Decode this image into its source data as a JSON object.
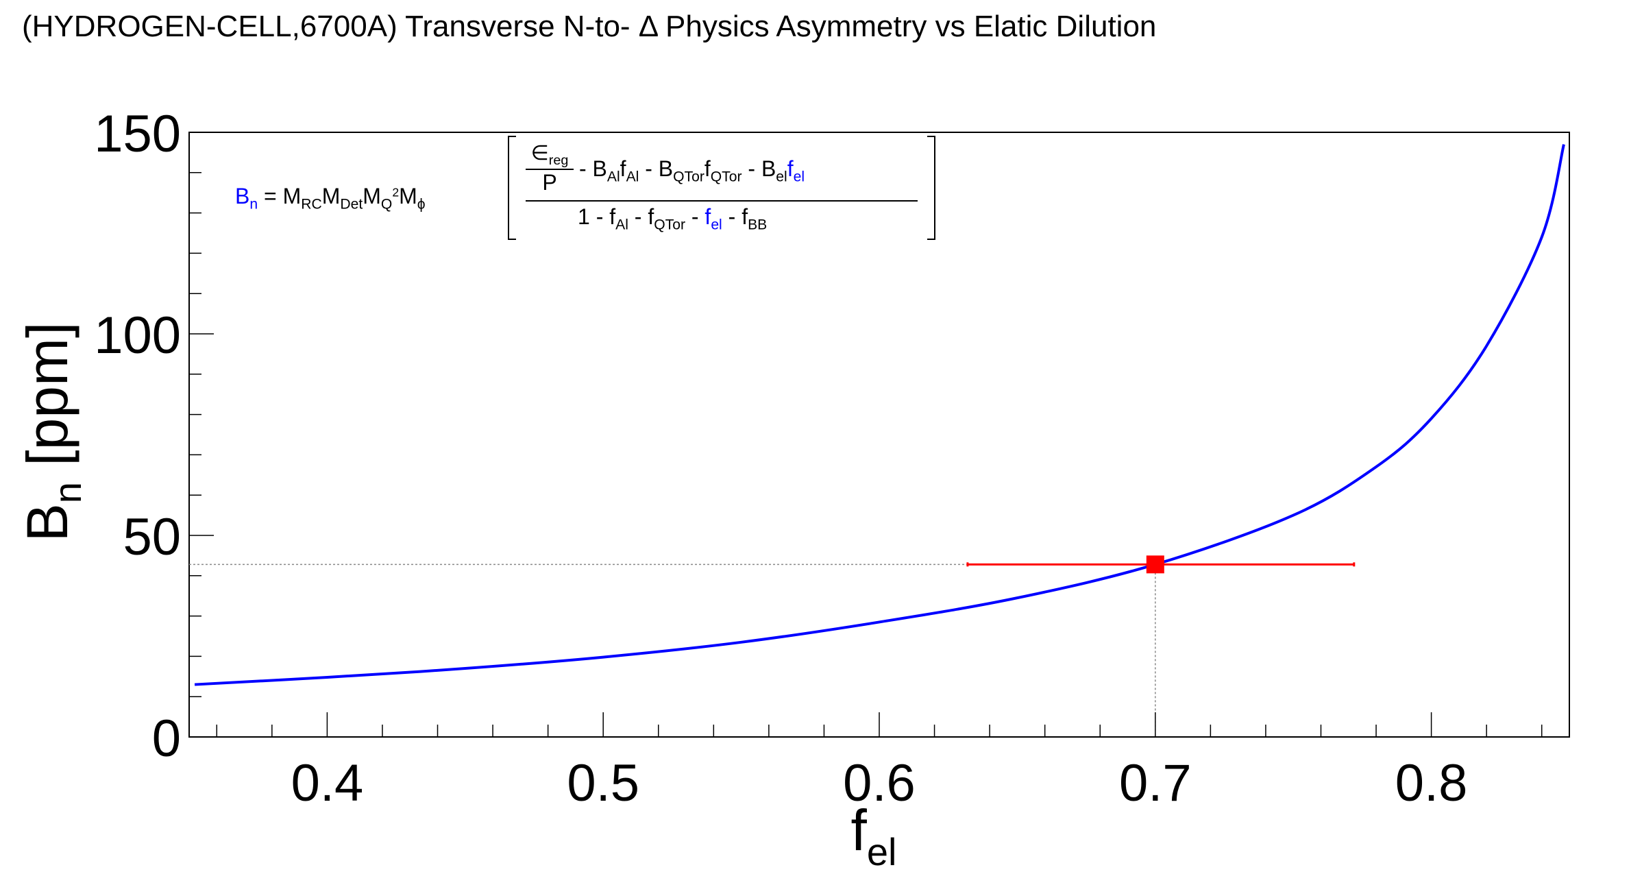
{
  "title": "(HYDROGEN-CELL,6700A) Transverse N-to- Δ Physics Asymmetry vs Elatic Dilution",
  "colors": {
    "curve": "#0000ff",
    "point": "#ff0000",
    "guide": "#888888",
    "axis": "#000000"
  },
  "chart_data": {
    "type": "line",
    "title": "(HYDROGEN-CELL,6700A) Transverse N-to- Δ Physics Asymmetry vs Elatic Dilution",
    "xlabel": "f",
    "xlabel_sub": "el",
    "ylabel": "B",
    "ylabel_sub": "n",
    "ylabel_unit": " [ppm]",
    "xlim": [
      0.35,
      0.85
    ],
    "ylim": [
      0,
      150
    ],
    "xticks": [
      "0.4",
      "0.5",
      "0.6",
      "0.7",
      "0.8"
    ],
    "xtick_values": [
      0.4,
      0.5,
      0.6,
      0.7,
      0.8
    ],
    "yticks": [
      "0",
      "50",
      "100",
      "150"
    ],
    "ytick_values": [
      0,
      50,
      100,
      150
    ],
    "grid": false,
    "series": [
      {
        "color": "#0000ff",
        "x": [
          0.352,
          0.4,
          0.45,
          0.5,
          0.55,
          0.6,
          0.65,
          0.7,
          0.75,
          0.78,
          0.8,
          0.82,
          0.84,
          0.848
        ],
        "y": [
          13.0,
          14.8,
          17.0,
          19.8,
          23.5,
          28.5,
          34.5,
          42.8,
          55.0,
          67.0,
          79.0,
          97.0,
          124.0,
          147.0
        ]
      }
    ],
    "point": {
      "x": 0.7,
      "y": 42.8,
      "xerr_low": 0.632,
      "xerr_high": 0.772,
      "color": "#ff0000"
    }
  },
  "formula": {
    "lhs_B": "B",
    "lhs_n": "n",
    "lhs_eq": " = M",
    "m_rc": "RC",
    "m2": "M",
    "m_det": "Det",
    "m3": "M",
    "m_q": "Q",
    "m_q_sup": "2",
    "m4": "M",
    "m_phi": "ϕ",
    "eps": "∈",
    "eps_sub": "reg",
    "P": "P",
    "num_1": " - B",
    "num_al": "Al",
    "num_f1": "f",
    "num_al2": "Al",
    "num_2": " - B",
    "num_qtor": "QTor",
    "num_f2": "f",
    "num_qtor2": "QTor",
    "num_3": " - B",
    "num_el": "el",
    "num_fel": "f",
    "num_fel_sub": "el",
    "den_1": "1 - f",
    "den_al": "Al",
    "den_2": " - f",
    "den_qtor": "QTor",
    "den_3": " - ",
    "den_fel": "f",
    "den_fel_sub": "el",
    "den_4": " - f",
    "den_bb": "BB"
  }
}
